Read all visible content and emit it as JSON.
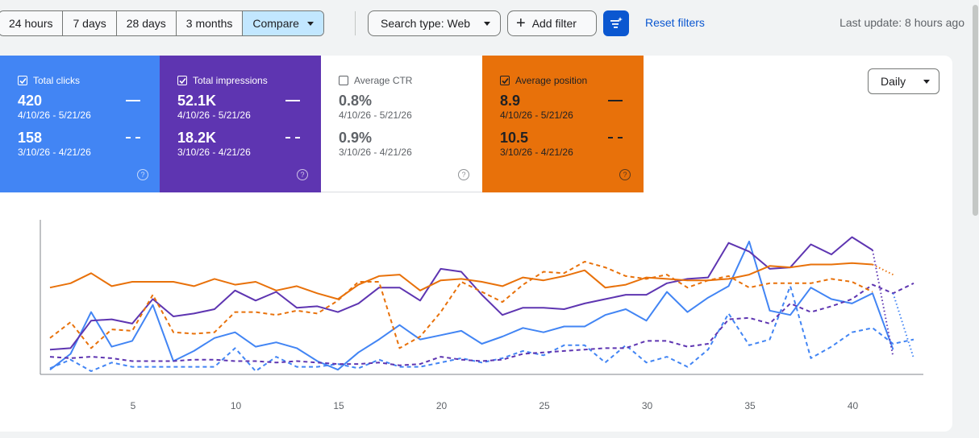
{
  "range_tabs": [
    "24 hours",
    "7 days",
    "28 days",
    "3 months"
  ],
  "compare_label": "Compare",
  "search_type_label": "Search type: Web",
  "add_filter_label": "Add filter",
  "reset_filters_label": "Reset filters",
  "last_update": "Last update: 8 hours ago",
  "granularity": "Daily",
  "metrics": {
    "clicks": {
      "label": "Total clicks",
      "value": "420",
      "range": "4/10/26 - 5/21/26",
      "compare_value": "158",
      "compare_range": "3/10/26 - 4/21/26",
      "checked": true,
      "color": "#4285f4"
    },
    "impressions": {
      "label": "Total impressions",
      "value": "52.1K",
      "range": "4/10/26 - 5/21/26",
      "compare_value": "18.2K",
      "compare_range": "3/10/26 - 4/21/26",
      "checked": true,
      "color": "#5e35b1"
    },
    "ctr": {
      "label": "Average CTR",
      "value": "0.8%",
      "range": "4/10/26 - 5/21/26",
      "compare_value": "0.9%",
      "compare_range": "3/10/26 - 4/21/26",
      "checked": false,
      "color": "#ffffff"
    },
    "position": {
      "label": "Average position",
      "value": "8.9",
      "range": "4/10/26 - 5/21/26",
      "compare_value": "10.5",
      "compare_range": "3/10/26 - 4/21/26",
      "checked": true,
      "color": "#e8710a"
    }
  },
  "chart_data": {
    "type": "line",
    "x_ticks": [
      "5",
      "10",
      "15",
      "20",
      "25",
      "30",
      "35",
      "40"
    ],
    "normalized_scale": true,
    "ylim": [
      0,
      100
    ],
    "grid": false,
    "legend": "none",
    "series": [
      {
        "metric": "clicks",
        "period": "current",
        "color": "#4285f4",
        "dash": false,
        "values": [
          1,
          12,
          41,
          17,
          21,
          46,
          7,
          14,
          23,
          27,
          17,
          20,
          16,
          7,
          1,
          13,
          22,
          32,
          22,
          25,
          28,
          19,
          24,
          30,
          27,
          31,
          31,
          39,
          43,
          35,
          55,
          41,
          51,
          59,
          90,
          42,
          39,
          58,
          50,
          47,
          54,
          15
        ]
      },
      {
        "metric": "clicks",
        "period": "previous",
        "color": "#4285f4",
        "dash": true,
        "values": [
          2,
          8,
          0,
          6,
          3,
          3,
          3,
          3,
          3,
          16,
          0,
          10,
          3,
          3,
          5,
          2,
          8,
          3,
          3,
          6,
          9,
          6,
          9,
          14,
          11,
          18,
          18,
          6,
          18,
          6,
          10,
          3,
          15,
          40,
          18,
          22,
          59,
          9,
          17,
          27,
          30,
          19,
          22
        ]
      },
      {
        "metric": "impressions",
        "period": "current",
        "color": "#5e35b1",
        "dash": false,
        "values": [
          15,
          16,
          35,
          36,
          33,
          50,
          38,
          40,
          43,
          56,
          49,
          55,
          44,
          45,
          41,
          47,
          58,
          58,
          49,
          71,
          69,
          53,
          39,
          44,
          44,
          43,
          47,
          50,
          53,
          53,
          61,
          64,
          65,
          89,
          83,
          71,
          72,
          88,
          81,
          93,
          84
        ]
      },
      {
        "metric": "impressions",
        "period": "previous",
        "color": "#5e35b1",
        "dash": true,
        "values": [
          10,
          9,
          10,
          9,
          7,
          7,
          7,
          8,
          8,
          7,
          7,
          6,
          7,
          6,
          5,
          5,
          6,
          4,
          5,
          10,
          8,
          7,
          8,
          12,
          13,
          14,
          15,
          16,
          16,
          21,
          21,
          17,
          19,
          36,
          37,
          33,
          47,
          41,
          45,
          50,
          60,
          54,
          61
        ]
      },
      {
        "metric": "position",
        "period": "current",
        "color": "#e8710a",
        "dash": false,
        "values": [
          58,
          61,
          68,
          59,
          62,
          62,
          62,
          59,
          64,
          60,
          62,
          56,
          59,
          54,
          50,
          60,
          66,
          67,
          56,
          63,
          64,
          62,
          59,
          65,
          63,
          66,
          70,
          58,
          60,
          65,
          64,
          63,
          63,
          64,
          67,
          73,
          72,
          74,
          74,
          75,
          74
        ]
      },
      {
        "metric": "position",
        "period": "previous",
        "color": "#e8710a",
        "dash": true,
        "values": [
          23,
          34,
          16,
          29,
          28,
          53,
          27,
          26,
          27,
          41,
          41,
          39,
          42,
          40,
          49,
          62,
          62,
          16,
          24,
          41,
          62,
          55,
          48,
          60,
          69,
          68,
          76,
          72,
          66,
          64,
          67,
          58,
          63,
          66,
          58,
          61,
          61,
          61,
          64,
          62,
          55
        ]
      }
    ],
    "forecast": [
      {
        "color": "#4285f4",
        "values": [
          54,
          9
        ]
      },
      {
        "color": "#5e35b1",
        "values": [
          84,
          10
        ]
      },
      {
        "color": "#e8710a",
        "values": [
          74,
          67
        ]
      }
    ]
  }
}
